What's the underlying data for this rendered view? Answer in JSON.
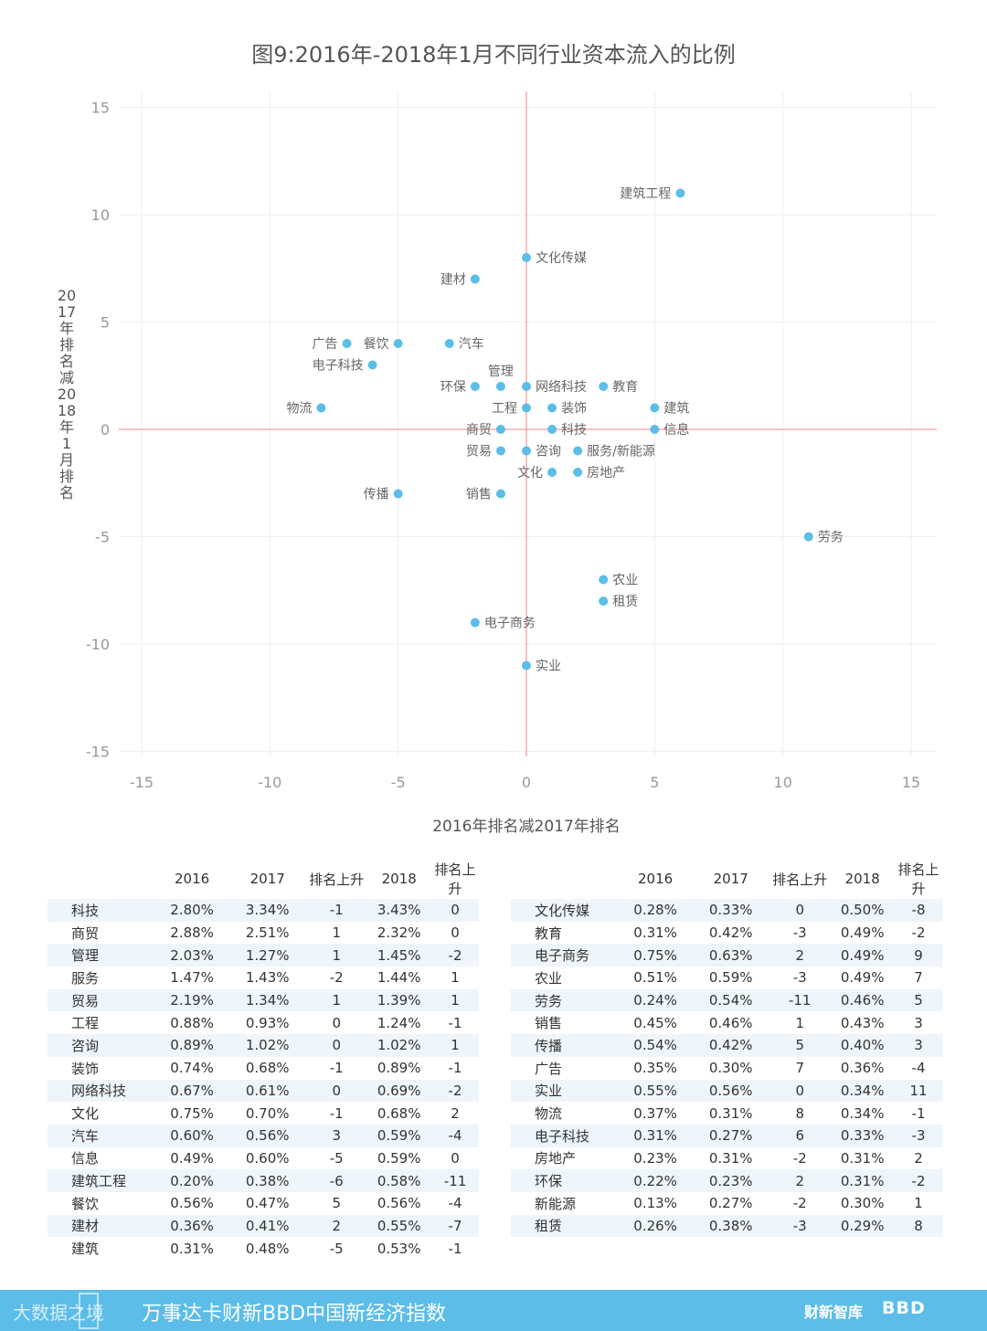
{
  "chart_data": {
    "type": "scatter",
    "title": "图9:2016年-2018年1月不同行业资本流入的比例",
    "xlabel": "2016年排名减2017年排名",
    "ylabel": "2017年排名减2018年1月排名",
    "xlim": [
      -15,
      15
    ],
    "ylim": [
      -15,
      15
    ],
    "xticks": [
      -15,
      -10,
      -5,
      0,
      5,
      10,
      15
    ],
    "yticks": [
      15,
      10,
      5,
      0,
      -5,
      -10,
      -15
    ],
    "points": [
      {
        "label": "建筑工程",
        "x": 6,
        "y": 11
      },
      {
        "label": "文化传媒",
        "x": 0,
        "y": 8
      },
      {
        "label": "建材",
        "x": -2,
        "y": 7
      },
      {
        "label": "广告",
        "x": -7,
        "y": 4
      },
      {
        "label": "餐饮",
        "x": -5,
        "y": 4
      },
      {
        "label": "汽车",
        "x": -3,
        "y": 4
      },
      {
        "label": "电子科技",
        "x": -6,
        "y": 3
      },
      {
        "label": "管理",
        "x": -1,
        "y": 2
      },
      {
        "label": "环保",
        "x": -2,
        "y": 2
      },
      {
        "label": "网络科技",
        "x": 0,
        "y": 2
      },
      {
        "label": "教育",
        "x": 3,
        "y": 2
      },
      {
        "label": "物流",
        "x": -8,
        "y": 1
      },
      {
        "label": "工程",
        "x": 0,
        "y": 1
      },
      {
        "label": "装饰",
        "x": 1,
        "y": 1
      },
      {
        "label": "建筑",
        "x": 5,
        "y": 1
      },
      {
        "label": "商贸",
        "x": -1,
        "y": 0
      },
      {
        "label": "科技",
        "x": 1,
        "y": 0
      },
      {
        "label": "信息",
        "x": 5,
        "y": 0
      },
      {
        "label": "贸易",
        "x": -1,
        "y": -1
      },
      {
        "label": "咨询",
        "x": 0,
        "y": -1
      },
      {
        "label": "服务/新能源",
        "x": 2,
        "y": -1
      },
      {
        "label": "文化",
        "x": 1,
        "y": -2
      },
      {
        "label": "房地产",
        "x": 2,
        "y": -2
      },
      {
        "label": "传播",
        "x": -5,
        "y": -3
      },
      {
        "label": "销售",
        "x": -1,
        "y": -3
      },
      {
        "label": "劳务",
        "x": 11,
        "y": -5
      },
      {
        "label": "农业",
        "x": 3,
        "y": -7
      },
      {
        "label": "租赁",
        "x": 3,
        "y": -8
      },
      {
        "label": "电子商务",
        "x": -2,
        "y": -9
      },
      {
        "label": "实业",
        "x": 0,
        "y": -11
      }
    ]
  },
  "table": {
    "headers": [
      "",
      "2016",
      "2017",
      "排名上升",
      "2018",
      "排名上升"
    ],
    "left_rows": [
      [
        "科技",
        "2.80%",
        "3.34%",
        "-1",
        "3.43%",
        "0"
      ],
      [
        "商贸",
        "2.88%",
        "2.51%",
        "1",
        "2.32%",
        "0"
      ],
      [
        "管理",
        "2.03%",
        "1.27%",
        "1",
        "1.45%",
        "-2"
      ],
      [
        "服务",
        "1.47%",
        "1.43%",
        "-2",
        "1.44%",
        "1"
      ],
      [
        "贸易",
        "2.19%",
        "1.34%",
        "1",
        "1.39%",
        "1"
      ],
      [
        "工程",
        "0.88%",
        "0.93%",
        "0",
        "1.24%",
        "-1"
      ],
      [
        "咨询",
        "0.89%",
        "1.02%",
        "0",
        "1.02%",
        "1"
      ],
      [
        "装饰",
        "0.74%",
        "0.68%",
        "-1",
        "0.89%",
        "-1"
      ],
      [
        "网络科技",
        "0.67%",
        "0.61%",
        "0",
        "0.69%",
        "-2"
      ],
      [
        "文化",
        "0.75%",
        "0.70%",
        "-1",
        "0.68%",
        "2"
      ],
      [
        "汽车",
        "0.60%",
        "0.56%",
        "3",
        "0.59%",
        "-4"
      ],
      [
        "信息",
        "0.49%",
        "0.60%",
        "-5",
        "0.59%",
        "0"
      ],
      [
        "建筑工程",
        "0.20%",
        "0.38%",
        "-6",
        "0.58%",
        "-11"
      ],
      [
        "餐饮",
        "0.56%",
        "0.47%",
        "5",
        "0.56%",
        "-4"
      ],
      [
        "建材",
        "0.36%",
        "0.41%",
        "2",
        "0.55%",
        "-7"
      ],
      [
        "建筑",
        "0.31%",
        "0.48%",
        "-5",
        "0.53%",
        "-1"
      ]
    ],
    "right_rows": [
      [
        "文化传媒",
        "0.28%",
        "0.33%",
        "0",
        "0.50%",
        "-8"
      ],
      [
        "教育",
        "0.31%",
        "0.42%",
        "-3",
        "0.49%",
        "-2"
      ],
      [
        "电子商务",
        "0.75%",
        "0.63%",
        "2",
        "0.49%",
        "9"
      ],
      [
        "农业",
        "0.51%",
        "0.59%",
        "-3",
        "0.49%",
        "7"
      ],
      [
        "劳务",
        "0.24%",
        "0.54%",
        "-11",
        "0.46%",
        "5"
      ],
      [
        "销售",
        "0.45%",
        "0.46%",
        "1",
        "0.43%",
        "3"
      ],
      [
        "传播",
        "0.54%",
        "0.42%",
        "5",
        "0.40%",
        "3"
      ],
      [
        "广告",
        "0.35%",
        "0.30%",
        "7",
        "0.36%",
        "-4"
      ],
      [
        "实业",
        "0.55%",
        "0.56%",
        "0",
        "0.34%",
        "11"
      ],
      [
        "物流",
        "0.37%",
        "0.31%",
        "8",
        "0.34%",
        "-1"
      ],
      [
        "电子科技",
        "0.31%",
        "0.27%",
        "6",
        "0.33%",
        "-3"
      ],
      [
        "房地产",
        "0.23%",
        "0.31%",
        "-2",
        "0.31%",
        "2"
      ],
      [
        "环保",
        "0.22%",
        "0.23%",
        "2",
        "0.31%",
        "-2"
      ],
      [
        "新能源",
        "0.13%",
        "0.27%",
        "-2",
        "0.30%",
        "1"
      ],
      [
        "租赁",
        "0.26%",
        "0.38%",
        "-3",
        "0.29%",
        "8"
      ]
    ]
  },
  "footer": {
    "brand_left": "大数据之境",
    "index_title": "万事达卡财新BBD中国新经济指数",
    "brand_caixin": "财新智库",
    "brand_bbd": "BBD"
  },
  "colors": {
    "point": "#5bbde8",
    "axis_zero": "#f08080",
    "grid": "#eeeeee",
    "footer_bg": "#5bbde8",
    "row_stripe": "#eef5fb"
  }
}
